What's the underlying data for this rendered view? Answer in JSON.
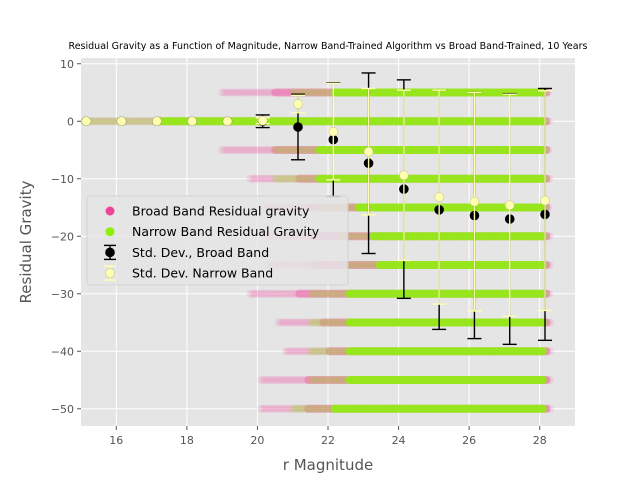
{
  "chart_data": {
    "type": "scatter",
    "title": "Residual Gravity as a Function of Magnitude, Narrow Band-Trained Algorithm vs Broad Band-Trained, 10 Years",
    "xlabel": "r Magnitude",
    "ylabel": "Residual Gravity",
    "xlim": [
      15.0,
      29.0
    ],
    "ylim": [
      -53.0,
      11.0
    ],
    "xticks": [
      16,
      18,
      20,
      22,
      24,
      26,
      28
    ],
    "yticks": [
      10,
      0,
      -10,
      -20,
      -30,
      -40,
      -50
    ],
    "xtick_labels": [
      "16",
      "18",
      "20",
      "22",
      "24",
      "26",
      "28"
    ],
    "ytick_labels": [
      "10",
      "0",
      "−10",
      "−20",
      "−30",
      "−40",
      "−50"
    ],
    "grid": true,
    "legend_position": "center-left",
    "colors": {
      "broad_scatter": "#f0449a",
      "narrow_scatter": "#8ef00a",
      "broad_errorbar": "#000000",
      "narrow_errorbar": "#ffffb0",
      "axes_bg": "#e5e5e5",
      "grid": "#ffffff"
    },
    "scatter_series": [
      {
        "name": "Broad Band Residual gravity",
        "color": "#f0449a",
        "bands": [
          {
            "y": 5,
            "x_range": [
              19.0,
              28.3
            ]
          },
          {
            "y": 0,
            "x_range": [
              15.1,
              28.3
            ]
          },
          {
            "y": -5,
            "x_range": [
              19.0,
              28.3
            ]
          },
          {
            "y": -10,
            "x_range": [
              19.8,
              28.3
            ]
          },
          {
            "y": -15,
            "x_range": [
              20.2,
              28.3
            ]
          },
          {
            "y": -20,
            "x_range": [
              20.3,
              28.3
            ]
          },
          {
            "y": -25,
            "x_range": [
              20.3,
              28.3
            ]
          },
          {
            "y": -30,
            "x_range": [
              19.8,
              28.3
            ]
          },
          {
            "y": -35,
            "x_range": [
              20.6,
              28.3
            ]
          },
          {
            "y": -40,
            "x_range": [
              20.8,
              28.3
            ]
          },
          {
            "y": -45,
            "x_range": [
              20.1,
              28.3
            ]
          },
          {
            "y": -50,
            "x_range": [
              20.1,
              28.3
            ]
          }
        ]
      },
      {
        "name": "Narrow Band Residual Gravity",
        "color": "#8ef00a",
        "bands": [
          {
            "y": 5,
            "x_range": [
              21.0,
              28.2
            ]
          },
          {
            "y": 0,
            "x_range": [
              15.1,
              28.2
            ]
          },
          {
            "y": -5,
            "x_range": [
              20.5,
              28.2
            ]
          },
          {
            "y": -10,
            "x_range": [
              20.5,
              28.2
            ]
          },
          {
            "y": -15,
            "x_range": [
              21.8,
              28.2
            ]
          },
          {
            "y": -20,
            "x_range": [
              22.3,
              28.2
            ]
          },
          {
            "y": -25,
            "x_range": [
              22.5,
              28.2
            ]
          },
          {
            "y": -30,
            "x_range": [
              21.5,
              28.2
            ]
          },
          {
            "y": -35,
            "x_range": [
              21.5,
              28.2
            ]
          },
          {
            "y": -40,
            "x_range": [
              21.5,
              28.2
            ]
          },
          {
            "y": -45,
            "x_range": [
              21.5,
              28.2
            ]
          },
          {
            "y": -50,
            "x_range": [
              21.0,
              28.2
            ]
          }
        ]
      }
    ],
    "errorbar_series": [
      {
        "name": "Std. Dev., Broad Band",
        "color": "#000000",
        "points": [
          {
            "x": 15.15,
            "y": 0.0,
            "err": 0.0
          },
          {
            "x": 16.15,
            "y": 0.0,
            "err": 0.0
          },
          {
            "x": 17.15,
            "y": 0.0,
            "err": 0.0
          },
          {
            "x": 18.15,
            "y": 0.0,
            "err": 0.0
          },
          {
            "x": 19.15,
            "y": 0.0,
            "err": 0.0
          },
          {
            "x": 20.15,
            "y": 0.0,
            "err": 1.1
          },
          {
            "x": 21.15,
            "y": -1.0,
            "err": 5.7
          },
          {
            "x": 22.15,
            "y": -3.2,
            "err": 9.9
          },
          {
            "x": 23.15,
            "y": -7.3,
            "err": 15.7
          },
          {
            "x": 24.15,
            "y": -11.8,
            "err": 19.0
          },
          {
            "x": 25.15,
            "y": -15.4,
            "err": 20.8
          },
          {
            "x": 26.15,
            "y": -16.4,
            "err": 21.4
          },
          {
            "x": 27.15,
            "y": -17.0,
            "err": 21.8
          },
          {
            "x": 28.15,
            "y": -16.2,
            "err": 21.9
          }
        ]
      },
      {
        "name": "Std. Dev. Narrow Band",
        "color": "#ffffb0",
        "points": [
          {
            "x": 15.15,
            "y": 0.0,
            "err": 0.0
          },
          {
            "x": 16.15,
            "y": 0.0,
            "err": 0.0
          },
          {
            "x": 17.15,
            "y": 0.0,
            "err": 0.0
          },
          {
            "x": 18.15,
            "y": 0.0,
            "err": 0.0
          },
          {
            "x": 19.15,
            "y": 0.0,
            "err": 0.0
          },
          {
            "x": 20.15,
            "y": 0.1,
            "err": 0.5
          },
          {
            "x": 21.15,
            "y": 3.0,
            "err": 1.5
          },
          {
            "x": 22.15,
            "y": -1.8,
            "err": 8.4
          },
          {
            "x": 23.15,
            "y": -5.3,
            "err": 11.0
          },
          {
            "x": 24.15,
            "y": -9.4,
            "err": 14.8
          },
          {
            "x": 25.15,
            "y": -13.2,
            "err": 18.6
          },
          {
            "x": 26.15,
            "y": -14.0,
            "err": 19.0
          },
          {
            "x": 27.15,
            "y": -14.6,
            "err": 19.3
          },
          {
            "x": 28.15,
            "y": -13.8,
            "err": 19.1
          }
        ]
      }
    ],
    "legend": {
      "items": [
        {
          "label": "Broad Band Residual gravity",
          "kind": "scatter",
          "color": "#f0449a"
        },
        {
          "label": "Narrow Band Residual Gravity",
          "kind": "scatter",
          "color": "#8ef00a"
        },
        {
          "label": "Std. Dev., Broad Band",
          "kind": "errorbar",
          "color": "#000000"
        },
        {
          "label": "Std. Dev. Narrow Band",
          "kind": "errorbar",
          "color": "#ffffb0"
        }
      ]
    }
  }
}
